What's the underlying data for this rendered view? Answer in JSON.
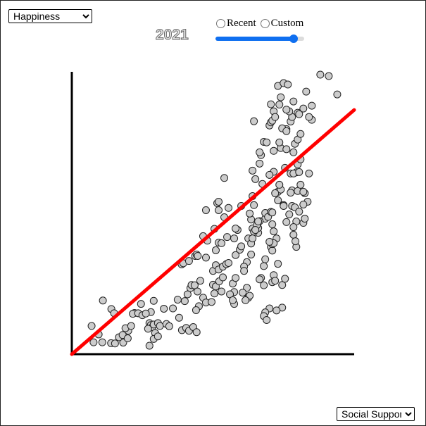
{
  "y_select": {
    "selected": "Happiness",
    "options": [
      "Happiness"
    ]
  },
  "x_select": {
    "selected": "Social Support",
    "options": [
      "Social Support"
    ]
  },
  "year": "2021",
  "radios": [
    {
      "label": "Recent",
      "checked": false
    },
    {
      "label": "Custom",
      "checked": false
    }
  ],
  "slider": {
    "fraction": 0.92
  },
  "colors": {
    "points_fill": "#cccccc",
    "points_stroke": "#222222",
    "regression_line": "#ff0000",
    "axes": "#000000",
    "slider_accent": "#0f6ff0"
  },
  "chart_data": {
    "type": "scatter",
    "title": "",
    "xlabel": "",
    "ylabel": "",
    "xlim": [
      0,
      100
    ],
    "ylim": [
      0,
      100
    ],
    "regression": {
      "x": [
        0,
        100
      ],
      "y": [
        0,
        86.5
      ]
    },
    "points": [
      [
        7.0,
        10.0
      ],
      [
        9.5,
        7.0
      ],
      [
        7.7,
        4.2
      ],
      [
        10.8,
        4.2
      ],
      [
        11.0,
        19.0
      ],
      [
        14.0,
        16.0
      ],
      [
        15.0,
        14.5
      ],
      [
        13.9,
        3.9
      ],
      [
        15.3,
        3.8
      ],
      [
        18.2,
        4.1
      ],
      [
        16.7,
        6.0
      ],
      [
        18.0,
        6.8
      ],
      [
        19.8,
        5.6
      ],
      [
        20.0,
        8.3
      ],
      [
        19.0,
        9.2
      ],
      [
        21.0,
        10.0
      ],
      [
        22.2,
        14.6
      ],
      [
        21.6,
        14.3
      ],
      [
        23.5,
        14.5
      ],
      [
        25.0,
        13.8
      ],
      [
        24.5,
        17.8
      ],
      [
        27.5,
        11.0
      ],
      [
        28.0,
        10.3
      ],
      [
        28.5,
        9.6
      ],
      [
        27.0,
        9.0
      ],
      [
        29.0,
        10.5
      ],
      [
        29.5,
        7.5
      ],
      [
        30.5,
        11.0
      ],
      [
        31.2,
        10.0
      ],
      [
        29.0,
        5.4
      ],
      [
        30.5,
        6.3
      ],
      [
        27.5,
        3.0
      ],
      [
        28.0,
        14.9
      ],
      [
        29.0,
        18.9
      ],
      [
        26.2,
        14.4
      ],
      [
        32.6,
        16.1
      ],
      [
        33.5,
        10.7
      ],
      [
        34.5,
        9.9
      ],
      [
        35.8,
        16.2
      ],
      [
        37.5,
        19.3
      ],
      [
        38.0,
        12.9
      ],
      [
        39.0,
        8.5
      ],
      [
        40.5,
        9.3
      ],
      [
        41.5,
        8.3
      ],
      [
        43.0,
        9.6
      ],
      [
        44.2,
        7.8
      ],
      [
        40.0,
        18.8
      ],
      [
        41.0,
        21.2
      ],
      [
        42.0,
        23.4
      ],
      [
        42.4,
        24.5
      ],
      [
        43.5,
        24.4
      ],
      [
        44.5,
        22.2
      ],
      [
        45.5,
        26.0
      ],
      [
        46.5,
        20.0
      ],
      [
        45.0,
        17.0
      ],
      [
        47.5,
        18.3
      ],
      [
        49.5,
        18.5
      ],
      [
        44.0,
        15.6
      ],
      [
        38.9,
        31.8
      ],
      [
        39.5,
        32.2
      ],
      [
        41.5,
        33.0
      ],
      [
        43.7,
        34.8
      ],
      [
        44.2,
        35.3
      ],
      [
        44.6,
        34.8
      ],
      [
        47.5,
        34.2
      ],
      [
        46.5,
        41.8
      ],
      [
        50.0,
        29.5
      ],
      [
        51.0,
        31.5
      ],
      [
        52.0,
        30.0
      ],
      [
        53.5,
        31.0
      ],
      [
        54.7,
        31.9
      ],
      [
        55.5,
        32.3
      ],
      [
        51.0,
        36.8
      ],
      [
        52.0,
        39.5
      ],
      [
        53.0,
        39.3
      ],
      [
        55.0,
        41.5
      ],
      [
        57.5,
        41.0
      ],
      [
        58.7,
        44.0
      ],
      [
        58.0,
        44.5
      ],
      [
        59.5,
        37.0
      ],
      [
        58.0,
        35.1
      ],
      [
        60.0,
        38.2
      ],
      [
        62.5,
        41.0
      ],
      [
        63.5,
        39.2
      ],
      [
        64.0,
        44.5
      ],
      [
        66.0,
        43.0
      ],
      [
        63.5,
        35.3
      ],
      [
        62.0,
        32.6
      ],
      [
        61.0,
        31.0
      ],
      [
        61.0,
        29.5
      ],
      [
        62.0,
        23.5
      ],
      [
        60.5,
        21.8
      ],
      [
        57.5,
        22.0
      ],
      [
        56.0,
        21.2
      ],
      [
        53.0,
        22.2
      ],
      [
        57.0,
        25.0
      ],
      [
        58.0,
        27.0
      ],
      [
        62.5,
        20.0
      ],
      [
        63.0,
        20.7
      ],
      [
        57.5,
        17.8
      ],
      [
        57.0,
        19.1
      ],
      [
        61.5,
        19.1
      ],
      [
        50.5,
        21.5
      ],
      [
        50.0,
        24.6
      ],
      [
        51.0,
        24.0
      ],
      [
        52.2,
        25.8
      ],
      [
        53.5,
        27.2
      ],
      [
        48.0,
        40.2
      ],
      [
        50.5,
        44.4
      ],
      [
        54.0,
        48.5
      ],
      [
        52.0,
        51.0
      ],
      [
        55.5,
        51.8
      ],
      [
        51.5,
        53.5
      ],
      [
        47.5,
        51.0
      ],
      [
        54.0,
        62.4
      ],
      [
        52.0,
        54.0
      ],
      [
        60.0,
        52.5
      ],
      [
        63.5,
        47.7
      ],
      [
        64.5,
        43.4
      ],
      [
        66.0,
        44.7
      ],
      [
        68.5,
        48.0
      ],
      [
        66.5,
        47.1
      ],
      [
        63.0,
        49.8
      ],
      [
        65.5,
        45.6
      ],
      [
        71.0,
        46.0
      ],
      [
        71.5,
        43.5
      ],
      [
        72.5,
        41.0
      ],
      [
        70.5,
        38.0
      ],
      [
        71.0,
        36.7
      ],
      [
        68.5,
        33.6
      ],
      [
        68.0,
        31.2
      ],
      [
        67.0,
        27.0
      ],
      [
        66.5,
        26.5
      ],
      [
        68.0,
        24.4
      ],
      [
        71.0,
        25.5
      ],
      [
        73.0,
        32.0
      ],
      [
        71.5,
        28.0
      ],
      [
        72.0,
        26.0
      ],
      [
        74.5,
        24.5
      ],
      [
        75.5,
        26.7
      ],
      [
        74.5,
        16.5
      ],
      [
        72.5,
        15.5
      ],
      [
        70.0,
        16.2
      ],
      [
        68.5,
        14.8
      ],
      [
        68.0,
        13.5
      ],
      [
        69.0,
        12.1
      ],
      [
        68.5,
        50.0
      ],
      [
        69.5,
        48.6
      ],
      [
        71.0,
        39.0
      ],
      [
        71.5,
        39.3
      ],
      [
        70.0,
        39.8
      ],
      [
        76.0,
        46.8
      ],
      [
        77.0,
        49.5
      ],
      [
        79.5,
        47.0
      ],
      [
        79.5,
        38.0
      ],
      [
        78.5,
        45.0
      ],
      [
        82.0,
        46.5
      ],
      [
        78.5,
        42.3
      ],
      [
        79.2,
        40.0
      ],
      [
        70.5,
        50.4
      ],
      [
        73.0,
        54.5
      ],
      [
        73.0,
        57.5
      ],
      [
        74.0,
        58.3
      ],
      [
        72.0,
        57.0
      ],
      [
        73.5,
        60.0
      ],
      [
        75.0,
        52.8
      ],
      [
        65.0,
        44.0
      ],
      [
        66.0,
        47.0
      ],
      [
        64.5,
        52.8
      ],
      [
        64.0,
        56.0
      ],
      [
        65.0,
        62.0
      ],
      [
        64.0,
        41.0
      ],
      [
        67.5,
        60.3
      ],
      [
        71.5,
        64.6
      ],
      [
        71.0,
        50.2
      ],
      [
        75.0,
        52.5
      ],
      [
        78.0,
        52.5
      ],
      [
        78.0,
        58.0
      ],
      [
        79.0,
        52.0
      ],
      [
        80.0,
        57.8
      ],
      [
        79.5,
        64.4
      ],
      [
        81.0,
        60.0
      ],
      [
        82.5,
        57.0
      ],
      [
        83.5,
        54.0
      ],
      [
        82.0,
        53.0
      ],
      [
        80.5,
        50.5
      ],
      [
        82.5,
        48.0
      ],
      [
        82.0,
        57.5
      ],
      [
        67.0,
        70.5
      ],
      [
        68.0,
        75.2
      ],
      [
        69.0,
        75.0
      ],
      [
        70.0,
        63.5
      ],
      [
        66.5,
        67.5
      ],
      [
        71.5,
        72.0
      ],
      [
        74.0,
        73.0
      ],
      [
        76.0,
        72.6
      ],
      [
        76.0,
        79.7
      ],
      [
        74.5,
        80.0
      ],
      [
        73.5,
        75.0
      ],
      [
        77.5,
        57.2
      ],
      [
        79.0,
        74.5
      ],
      [
        80.0,
        76.0
      ],
      [
        81.0,
        78.0
      ],
      [
        78.5,
        71.5
      ],
      [
        66.5,
        71.5
      ],
      [
        75.5,
        66.0
      ],
      [
        77.5,
        64.0
      ],
      [
        78.5,
        64.0
      ],
      [
        80.5,
        64.5
      ],
      [
        84.0,
        64.0
      ],
      [
        77.5,
        82.4
      ],
      [
        78.0,
        84.0
      ],
      [
        64.5,
        82.5
      ],
      [
        64.0,
        65.0
      ],
      [
        77.0,
        86.0
      ],
      [
        70.0,
        81.0
      ],
      [
        70.5,
        82.1
      ],
      [
        76.0,
        79.0
      ],
      [
        80.0,
        85.5
      ],
      [
        73.0,
        95.0
      ],
      [
        75.0,
        96.0
      ],
      [
        78.5,
        89.5
      ],
      [
        80.5,
        85.0
      ],
      [
        82.0,
        87.0
      ],
      [
        85.0,
        83.0
      ],
      [
        85.0,
        88.0
      ],
      [
        84.0,
        84.0
      ],
      [
        71.5,
        86.0
      ],
      [
        70.5,
        88.5
      ],
      [
        74.0,
        91.0
      ],
      [
        76.0,
        86.6
      ],
      [
        80.0,
        67.2
      ],
      [
        81.0,
        69.0
      ],
      [
        73.5,
        88.4
      ],
      [
        71.0,
        82.7
      ],
      [
        72.0,
        84.0
      ],
      [
        76.5,
        95.5
      ],
      [
        83.0,
        93.0
      ],
      [
        88.0,
        99.0
      ],
      [
        94.0,
        92.0
      ],
      [
        91.0,
        98.5
      ]
    ]
  }
}
